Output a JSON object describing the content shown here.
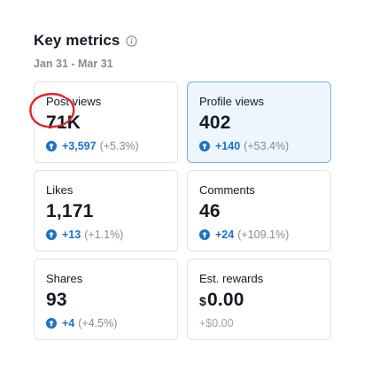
{
  "header": {
    "title": "Key metrics",
    "date_range": "Jan 31 - Mar 31",
    "info_icon": "info-circle-icon"
  },
  "metrics": [
    {
      "label": "Post views",
      "value": "71K",
      "delta": "+3,597",
      "pct": "(+5.3%)",
      "icon": "arrow-up-circle-icon"
    },
    {
      "label": "Profile views",
      "value": "402",
      "delta": "+140",
      "pct": "(+53.4%)",
      "icon": "arrow-up-circle-icon",
      "selected": true
    },
    {
      "label": "Likes",
      "value": "1,171",
      "delta": "+13",
      "pct": "(+1.1%)",
      "icon": "arrow-up-circle-icon"
    },
    {
      "label": "Comments",
      "value": "46",
      "delta": "+24",
      "pct": "(+109.1%)",
      "icon": "arrow-up-circle-icon"
    },
    {
      "label": "Shares",
      "value": "93",
      "delta": "+4",
      "pct": "(+4.5%)",
      "icon": "arrow-up-circle-icon"
    },
    {
      "label": "Est. rewards",
      "currency": "$",
      "value": "0.00",
      "delta": "+$0.00"
    }
  ],
  "colors": {
    "accent": "#1a72c9",
    "selected_bg": "#eef6fd",
    "selected_border": "#6fb4e8",
    "annotation": "#e0262b"
  }
}
